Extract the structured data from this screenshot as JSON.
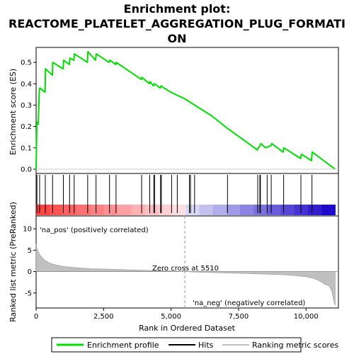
{
  "chart_data": {
    "type": "line",
    "title_lines": [
      "Enrichment plot:",
      "REACTOME_PLATELET_AGGREGATION_PLUG_FORMATI",
      "ON"
    ],
    "x_axis": {
      "label": "Rank in Ordered Dataset",
      "range": [
        0,
        11200
      ],
      "ticks": [
        0,
        2500,
        5000,
        7500,
        10000
      ],
      "tick_labels": [
        "0",
        "2,500",
        "5,000",
        "7,500",
        "10,000"
      ]
    },
    "es_panel": {
      "ylabel": "Enrichment score (ES)",
      "ylim": [
        -0.02,
        0.57
      ],
      "yticks": [
        0.0,
        0.1,
        0.2,
        0.3,
        0.4,
        0.5
      ],
      "ytick_labels": [
        "0.0",
        "0.1",
        "0.2",
        "0.3",
        "0.4",
        "0.5"
      ],
      "series": [
        {
          "name": "Enrichment profile",
          "color": "#00dd00",
          "x": [
            0,
            30,
            80,
            120,
            140,
            330,
            350,
            600,
            620,
            1000,
            1020,
            1230,
            1250,
            1400,
            1420,
            1900,
            1920,
            2200,
            2230,
            2700,
            2730,
            2950,
            2970,
            3900,
            3920,
            4200,
            4220,
            4350,
            4380,
            4600,
            4630,
            4680,
            5000,
            5500,
            6000,
            6500,
            7000,
            7100,
            8200,
            8230,
            8300,
            8330,
            8500,
            8700,
            8730,
            9150,
            9180,
            9800,
            9830,
            10200,
            10230,
            11080
          ],
          "y": [
            0.0,
            0.22,
            0.21,
            0.37,
            0.38,
            0.36,
            0.47,
            0.44,
            0.5,
            0.47,
            0.51,
            0.49,
            0.52,
            0.51,
            0.54,
            0.5,
            0.55,
            0.51,
            0.54,
            0.5,
            0.51,
            0.49,
            0.5,
            0.42,
            0.43,
            0.4,
            0.41,
            0.39,
            0.4,
            0.38,
            0.39,
            0.385,
            0.36,
            0.33,
            0.29,
            0.25,
            0.2,
            0.19,
            0.09,
            0.1,
            0.11,
            0.12,
            0.1,
            0.11,
            0.12,
            0.08,
            0.1,
            0.05,
            0.07,
            0.04,
            0.08,
            0.0
          ]
        }
      ]
    },
    "hits": {
      "name": "Hits",
      "x": [
        30,
        130,
        340,
        610,
        1010,
        1240,
        1410,
        1910,
        2220,
        2720,
        2960,
        3910,
        4210,
        4360,
        4390,
        4610,
        4640,
        5020,
        5230,
        5680,
        5720,
        5870,
        7090,
        8210,
        8290,
        8310,
        8560,
        8710,
        9170,
        9810,
        10220
      ]
    },
    "ranked_panel": {
      "ylabel": "Ranked list metric (PreRanked)",
      "ylim": [
        -8.5,
        13
      ],
      "yticks": [
        -5,
        0,
        5,
        10
      ],
      "ytick_labels": [
        "-5",
        "0",
        "5",
        "10"
      ],
      "series": [
        {
          "name": "Ranking metric scores",
          "color": "#c0c0c0",
          "x": [
            0,
            50,
            150,
            300,
            500,
            700,
            1000,
            1500,
            2000,
            3000,
            4000,
            5000,
            5510,
            6000,
            7000,
            8000,
            9000,
            9500,
            10000,
            10300,
            10500,
            10700,
            10850,
            10950,
            11000,
            11050,
            11080
          ],
          "y": [
            6.4,
            5.0,
            3.8,
            2.8,
            2.0,
            1.6,
            1.2,
            0.9,
            0.7,
            0.5,
            0.3,
            0.15,
            0.0,
            -0.15,
            -0.3,
            -0.5,
            -0.7,
            -0.9,
            -1.2,
            -1.6,
            -2.2,
            -3.0,
            -3.3,
            -4.5,
            -6.0,
            -7.5,
            -7.8
          ]
        }
      ],
      "zero_cross_label": "Zero cross at 5510",
      "zero_cross": 5510,
      "pos_label": "'na_pos' (positively correlated)",
      "neg_label": "'na_neg' (negatively correlated)",
      "pos_label_color": "#ff0000",
      "neg_label_color": "#0000ff"
    },
    "legend": {
      "placement": "bottom",
      "entries": [
        {
          "name": "Enrichment profile",
          "color": "#00dd00"
        },
        {
          "name": "Hits",
          "color": "#000000"
        },
        {
          "name": "Ranking metric scores",
          "color": "#c0c0c0"
        }
      ]
    }
  }
}
